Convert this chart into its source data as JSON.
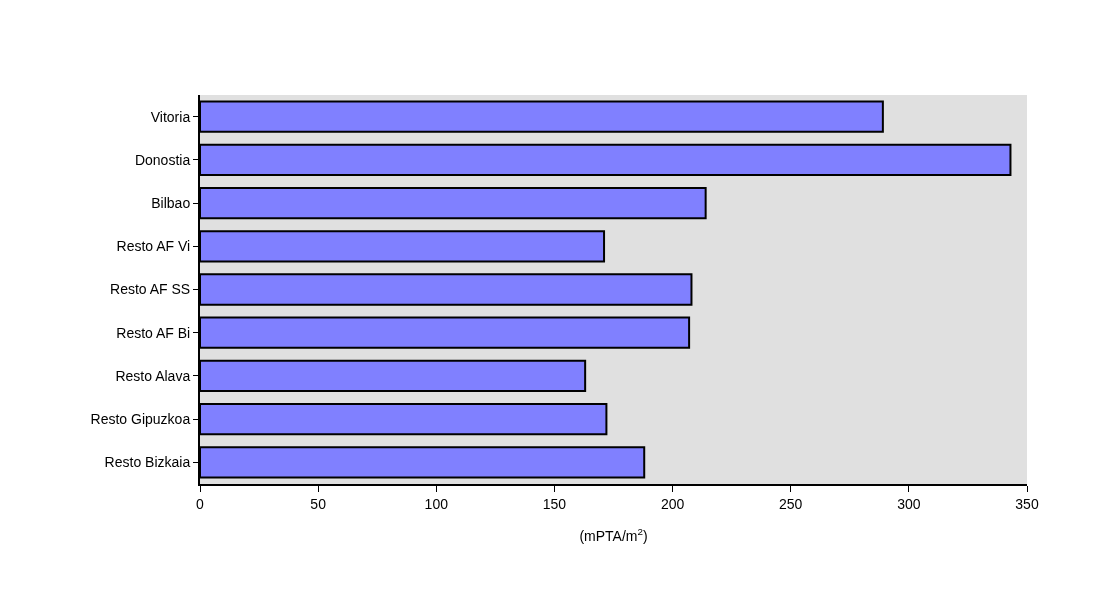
{
  "chart_data": {
    "type": "bar",
    "orientation": "horizontal",
    "categories": [
      "Vitoria",
      "Donostia",
      "Bilbao",
      "Resto AF Vi",
      "Resto AF SS",
      "Resto AF Bi",
      "Resto Alava",
      "Resto Gipuzkoa",
      "Resto Bizkaia"
    ],
    "values": [
      289,
      343,
      214,
      171,
      208,
      207,
      163,
      172,
      188
    ],
    "color": "#8080ff",
    "xlabel": "(mPTA/m$^{2}$)",
    "xlim": [
      0,
      350
    ],
    "xticks": [
      0,
      50,
      100,
      150,
      200,
      250,
      300,
      350
    ],
    "grid": false,
    "legend": false
  }
}
